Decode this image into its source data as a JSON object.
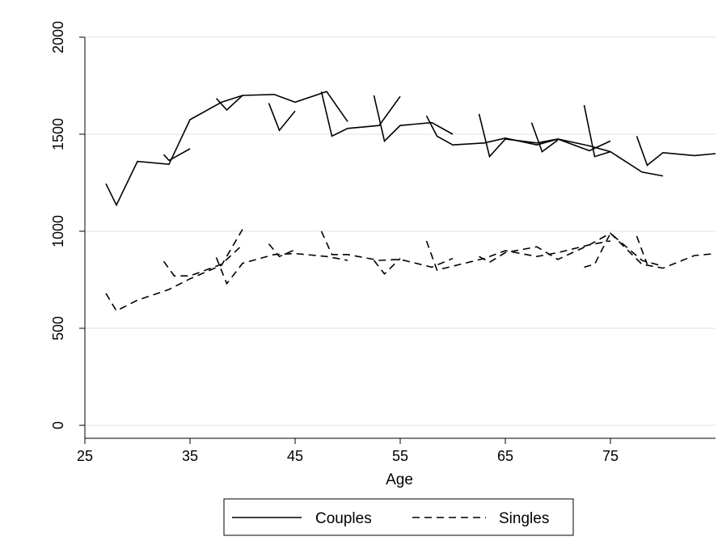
{
  "chart_data": {
    "type": "line",
    "xlabel": "Age",
    "ylabel": "",
    "xlim": [
      25,
      85
    ],
    "ylim": [
      0,
      2000
    ],
    "xticks": [
      25,
      35,
      45,
      55,
      65,
      75
    ],
    "yticks": [
      0,
      500,
      1000,
      1500,
      2000
    ],
    "grid": "horizontal",
    "legend_position": "bottom",
    "series": [
      {
        "name": "Couples",
        "style": "solid",
        "color": "#000000",
        "segments": [
          [
            [
              27,
              1245
            ],
            [
              28,
              1135
            ],
            [
              30,
              1360
            ],
            [
              33,
              1345
            ],
            [
              35,
              1575
            ],
            [
              38,
              1665
            ],
            [
              40,
              1700
            ],
            [
              43,
              1705
            ],
            [
              45,
              1665
            ],
            [
              48,
              1720
            ],
            [
              50,
              1565
            ]
          ],
          [
            [
              32.5,
              1395
            ],
            [
              33,
              1365
            ],
            [
              35,
              1425
            ]
          ],
          [
            [
              37.5,
              1685
            ],
            [
              38.5,
              1625
            ],
            [
              40,
              1700
            ]
          ],
          [
            [
              42.5,
              1660
            ],
            [
              43.5,
              1520
            ],
            [
              45,
              1620
            ]
          ],
          [
            [
              47.5,
              1720
            ],
            [
              48.5,
              1490
            ],
            [
              50,
              1530
            ],
            [
              53,
              1545
            ],
            [
              55,
              1695
            ]
          ],
          [
            [
              52.5,
              1700
            ],
            [
              53.5,
              1465
            ],
            [
              55,
              1545
            ],
            [
              58,
              1560
            ],
            [
              60,
              1500
            ]
          ],
          [
            [
              57.5,
              1595
            ],
            [
              58.5,
              1490
            ],
            [
              60,
              1445
            ],
            [
              63,
              1455
            ],
            [
              65,
              1480
            ],
            [
              68,
              1445
            ],
            [
              70,
              1475
            ],
            [
              73,
              1415
            ],
            [
              75,
              1465
            ]
          ],
          [
            [
              62.5,
              1605
            ],
            [
              63.5,
              1385
            ],
            [
              65,
              1475
            ],
            [
              68,
              1455
            ],
            [
              70,
              1475
            ],
            [
              73,
              1440
            ],
            [
              75,
              1410
            ],
            [
              78,
              1305
            ],
            [
              80,
              1285
            ]
          ],
          [
            [
              67.5,
              1560
            ],
            [
              68.5,
              1410
            ],
            [
              70,
              1470
            ]
          ],
          [
            [
              72.5,
              1650
            ],
            [
              73.5,
              1385
            ],
            [
              75,
              1410
            ]
          ],
          [
            [
              77.5,
              1490
            ],
            [
              78.5,
              1340
            ],
            [
              80,
              1405
            ],
            [
              83,
              1390
            ],
            [
              85,
              1400
            ]
          ]
        ]
      },
      {
        "name": "Singles",
        "style": "dashed",
        "color": "#000000",
        "segments": [
          [
            [
              27,
              680
            ],
            [
              28,
              590
            ],
            [
              30,
              645
            ],
            [
              33,
              700
            ],
            [
              35,
              755
            ],
            [
              38,
              825
            ],
            [
              40,
              1010
            ]
          ],
          [
            [
              32.5,
              845
            ],
            [
              33.5,
              770
            ],
            [
              35,
              770
            ],
            [
              38,
              830
            ],
            [
              40,
              930
            ]
          ],
          [
            [
              37.5,
              865
            ],
            [
              38.5,
              730
            ],
            [
              40,
              835
            ],
            [
              43,
              880
            ],
            [
              45,
              885
            ],
            [
              48,
              870
            ],
            [
              50,
              850
            ]
          ],
          [
            [
              42.5,
              935
            ],
            [
              43.5,
              870
            ],
            [
              45,
              905
            ]
          ],
          [
            [
              47.5,
              1000
            ],
            [
              48.5,
              880
            ],
            [
              50,
              880
            ],
            [
              53,
              850
            ],
            [
              55,
              855
            ],
            [
              58,
              815
            ],
            [
              60,
              860
            ]
          ],
          [
            [
              52.5,
              850
            ],
            [
              53.5,
              780
            ],
            [
              55,
              860
            ]
          ],
          [
            [
              57.5,
              950
            ],
            [
              58.5,
              800
            ],
            [
              60,
              820
            ],
            [
              63,
              860
            ],
            [
              65,
              900
            ],
            [
              68,
              870
            ],
            [
              70,
              890
            ],
            [
              73,
              930
            ],
            [
              75,
              950
            ]
          ],
          [
            [
              62.5,
              870
            ],
            [
              63.5,
              840
            ],
            [
              65,
              890
            ],
            [
              68,
              920
            ],
            [
              70,
              855
            ],
            [
              73,
              930
            ],
            [
              75,
              990
            ],
            [
              78,
              830
            ],
            [
              80,
              810
            ],
            [
              83,
              875
            ],
            [
              85,
              885
            ]
          ],
          [
            [
              72.5,
              815
            ],
            [
              73.5,
              830
            ],
            [
              75,
              990
            ],
            [
              78,
              850
            ],
            [
              80,
              820
            ]
          ],
          [
            [
              77.5,
              975
            ],
            [
              78.5,
              830
            ]
          ]
        ]
      }
    ]
  }
}
